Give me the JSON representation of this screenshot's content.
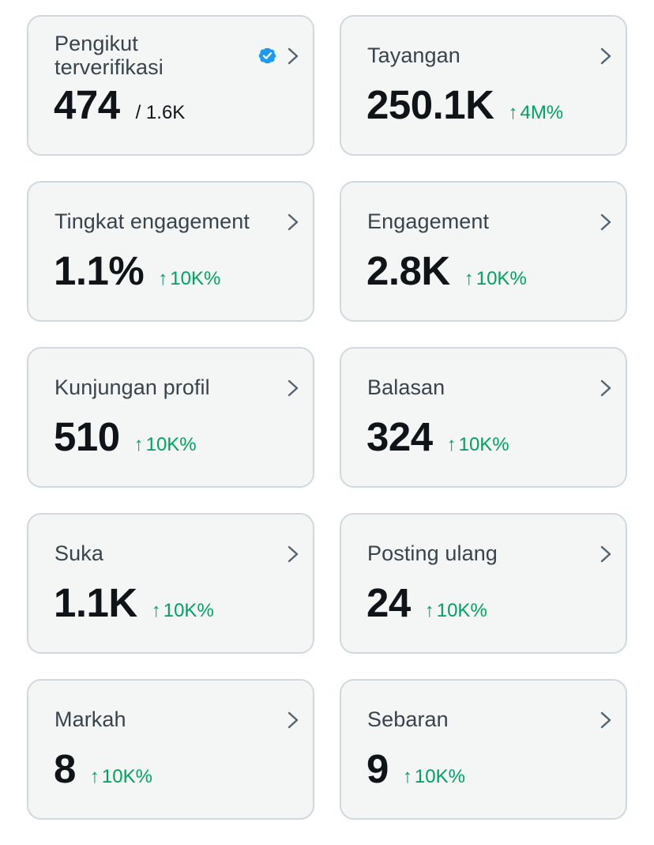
{
  "colors": {
    "card_background": "#f4f6f5",
    "card_border": "#cfd9de",
    "label_text": "#38444d",
    "value_text": "#0f1419",
    "positive_change": "#00a264",
    "verified_badge": "#1d9bf0"
  },
  "icons": {
    "chevron": "chevron-right-icon",
    "verified": "verified-badge-icon",
    "change_arrow": "↑"
  },
  "cards": [
    {
      "label": "Pengikut terverifikasi",
      "value": "474",
      "sub": "/ 1.6K",
      "verified": true
    },
    {
      "label": "Tayangan",
      "value": "250.1K",
      "change": "4M%"
    },
    {
      "label": "Tingkat engagement",
      "value": "1.1%",
      "change": "10K%"
    },
    {
      "label": "Engagement",
      "value": "2.8K",
      "change": "10K%"
    },
    {
      "label": "Kunjungan profil",
      "value": "510",
      "change": "10K%"
    },
    {
      "label": "Balasan",
      "value": "324",
      "change": "10K%"
    },
    {
      "label": "Suka",
      "value": "1.1K",
      "change": "10K%"
    },
    {
      "label": "Posting ulang",
      "value": "24",
      "change": "10K%"
    },
    {
      "label": "Markah",
      "value": "8",
      "change": "10K%"
    },
    {
      "label": "Sebaran",
      "value": "9",
      "change": "10K%"
    }
  ]
}
